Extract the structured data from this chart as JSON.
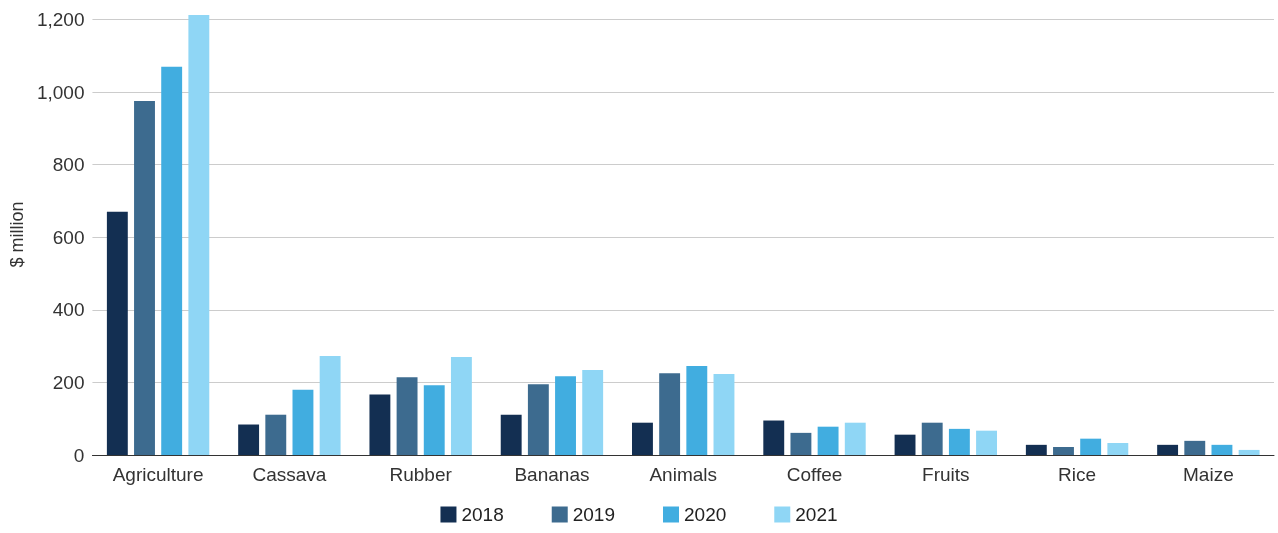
{
  "chart_data": {
    "type": "bar",
    "ylabel": "$ million",
    "categories": [
      "Agriculture",
      "Cassava",
      "Rubber",
      "Bananas",
      "Animals",
      "Coffee",
      "Fruits",
      "Rice",
      "Maize"
    ],
    "series": [
      {
        "name": "2018",
        "color": "#132f52",
        "values": [
          670,
          84,
          167,
          111,
          89,
          95,
          56,
          28,
          28
        ]
      },
      {
        "name": "2019",
        "color": "#3d6b8f",
        "values": [
          975,
          111,
          214,
          195,
          225,
          61,
          89,
          22,
          39
        ]
      },
      {
        "name": "2020",
        "color": "#41ade0",
        "values": [
          1070,
          180,
          192,
          217,
          245,
          78,
          72,
          45,
          28
        ]
      },
      {
        "name": "2021",
        "color": "#8fd6f5",
        "values": [
          1212,
          273,
          270,
          234,
          223,
          89,
          67,
          33,
          14
        ]
      }
    ],
    "ylim": [
      0,
      1215
    ],
    "yticks": [
      0,
      {
        "value": 200,
        "label": "200"
      },
      {
        "value": 400,
        "label": "400"
      },
      {
        "value": 600,
        "label": "600"
      },
      {
        "value": 800,
        "label": "800"
      },
      {
        "value": 1000,
        "label": "1,000"
      },
      {
        "value": 1200,
        "label": "1,200"
      }
    ],
    "grid": "y",
    "legend": "bottom"
  }
}
